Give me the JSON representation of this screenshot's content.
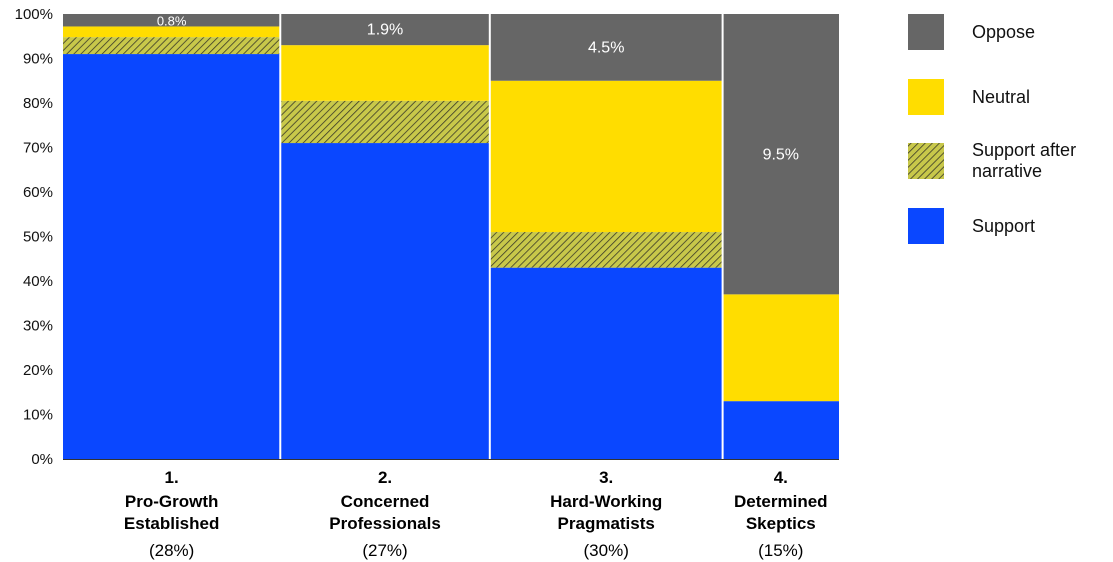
{
  "chart_data": {
    "type": "bar",
    "stacked": true,
    "variable_width": true,
    "ylim": [
      0,
      100
    ],
    "y_ticks": [
      "0%",
      "10%",
      "20%",
      "30%",
      "40%",
      "50%",
      "60%",
      "70%",
      "80%",
      "90%",
      "100%"
    ],
    "categories": [
      {
        "number": "1.",
        "name_lines": [
          "Pro-Growth",
          "Established"
        ],
        "share": "(28%)",
        "width_pct": 28
      },
      {
        "number": "2.",
        "name_lines": [
          "Concerned",
          "Professionals"
        ],
        "share": "(27%)",
        "width_pct": 27
      },
      {
        "number": "3.",
        "name_lines": [
          "Hard-Working",
          "Pragmatists"
        ],
        "share": "(30%)",
        "width_pct": 30
      },
      {
        "number": "4.",
        "name_lines": [
          "Determined",
          "Skeptics"
        ],
        "share": "(15%)",
        "width_pct": 15
      }
    ],
    "series": [
      {
        "name": "Support",
        "key": "support",
        "color": "#0a47ff",
        "pattern": "solid",
        "values": [
          91,
          71,
          43,
          13
        ]
      },
      {
        "name": "Support after narrative",
        "key": "narrative",
        "color": "#c8c84a",
        "pattern": "hatch",
        "values": [
          3.8,
          9.5,
          8,
          0
        ]
      },
      {
        "name": "Neutral",
        "key": "neutral",
        "color": "#ffdd00",
        "pattern": "solid",
        "values": [
          2.4,
          12.5,
          34,
          24
        ]
      },
      {
        "name": "Oppose",
        "key": "oppose",
        "color": "#666666",
        "pattern": "solid",
        "values": [
          2.8,
          7,
          15,
          63
        ]
      }
    ],
    "data_labels": [
      "0.8%",
      "1.9%",
      "4.5%",
      "9.5%"
    ],
    "legend_items": [
      {
        "label_lines": [
          "Oppose"
        ],
        "series": "oppose"
      },
      {
        "label_lines": [
          "Neutral"
        ],
        "series": "neutral"
      },
      {
        "label_lines": [
          "Support after",
          "narrative"
        ],
        "series": "narrative"
      },
      {
        "label_lines": [
          "Support"
        ],
        "series": "support"
      }
    ],
    "legend_position": "right",
    "grid": false
  }
}
